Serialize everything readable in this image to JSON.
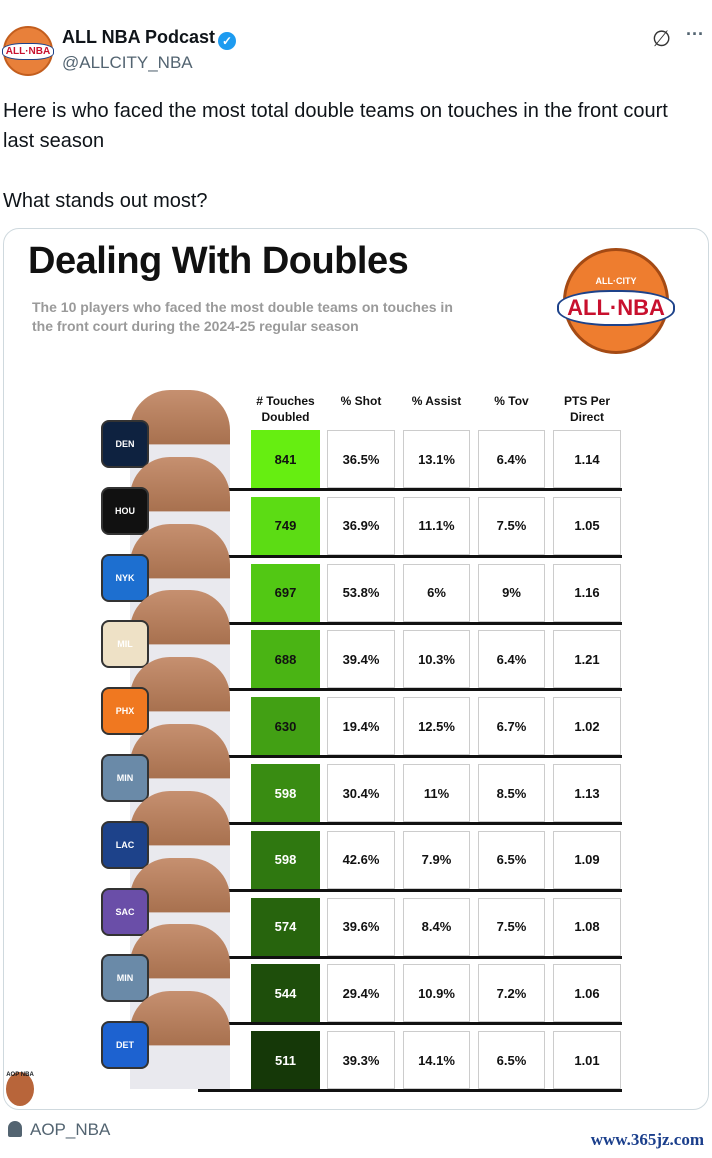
{
  "author": {
    "name": "ALL NBA Podcast",
    "handle": "@ALLCITY_NBA",
    "avatar_text": "ALL·NBA"
  },
  "tweet": {
    "line1": "Here is who faced the most total double teams on touches in the front court last season",
    "line2": "What stands out most?"
  },
  "icons": {
    "grok": "∅",
    "more": "···"
  },
  "graphic": {
    "title": "Dealing With Doubles",
    "subtitle": "The 10 players who faced the most double teams on touches in the front court during the 2024-25 regular season",
    "logo_top": "ALL·CITY",
    "logo_main": "ALL·NBA",
    "watermark": "AOP NBA",
    "headers": [
      "# Touches Doubled",
      "% Shot",
      "% Assist",
      "% Tov",
      "PTS Per Direct"
    ],
    "rows": [
      {
        "team": "DEN",
        "color": "#0e2240",
        "touches": "841",
        "shot": "36.5%",
        "assist": "13.1%",
        "tov": "6.4%",
        "pts": "1.14",
        "fill": "#66ee11"
      },
      {
        "team": "HOU",
        "color": "#111111",
        "touches": "749",
        "shot": "36.9%",
        "assist": "11.1%",
        "tov": "7.5%",
        "pts": "1.05",
        "fill": "#5cdc14"
      },
      {
        "team": "NYK",
        "color": "#1d6fd0",
        "touches": "697",
        "shot": "53.8%",
        "assist": "6%",
        "tov": "9%",
        "pts": "1.16",
        "fill": "#52c814"
      },
      {
        "team": "MIL",
        "color": "#eee1c6",
        "touches": "688",
        "shot": "39.4%",
        "assist": "10.3%",
        "tov": "6.4%",
        "pts": "1.21",
        "fill": "#4ab414"
      },
      {
        "team": "PHX",
        "color": "#f07820",
        "touches": "630",
        "shot": "19.4%",
        "assist": "12.5%",
        "tov": "6.7%",
        "pts": "1.02",
        "fill": "#42a014"
      },
      {
        "team": "MIN",
        "color": "#6a8aa8",
        "touches": "598",
        "shot": "30.4%",
        "assist": "11%",
        "tov": "8.5%",
        "pts": "1.13",
        "fill": "#398c12"
      },
      {
        "team": "LAC",
        "color": "#1d428a",
        "touches": "598",
        "shot": "42.6%",
        "assist": "7.9%",
        "tov": "6.5%",
        "pts": "1.09",
        "fill": "#2f7810"
      },
      {
        "team": "SAC",
        "color": "#6a4ea8",
        "touches": "574",
        "shot": "39.6%",
        "assist": "8.4%",
        "tov": "7.5%",
        "pts": "1.08",
        "fill": "#27640d"
      },
      {
        "team": "MIN",
        "color": "#6a8aa8",
        "touches": "544",
        "shot": "29.4%",
        "assist": "10.9%",
        "tov": "7.2%",
        "pts": "1.06",
        "fill": "#1e4e0b"
      },
      {
        "team": "DET",
        "color": "#1d62d0",
        "touches": "511",
        "shot": "39.3%",
        "assist": "14.1%",
        "tov": "6.5%",
        "pts": "1.01",
        "fill": "#153808"
      }
    ]
  },
  "footer": {
    "user": "AOP_NBA",
    "watermark": "www.365jz.com"
  }
}
